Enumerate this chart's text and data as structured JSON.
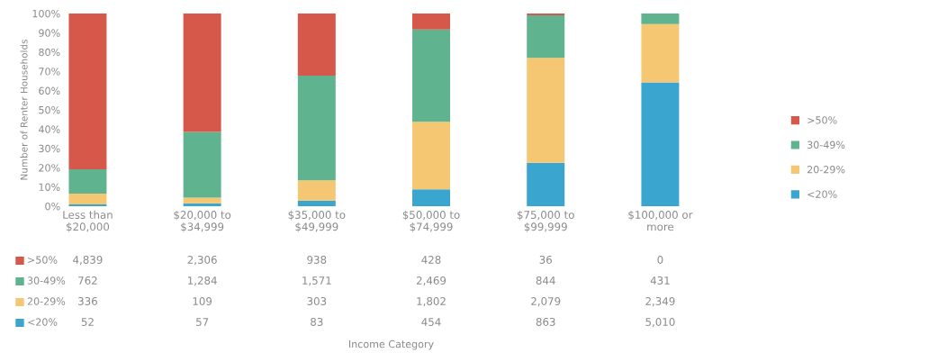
{
  "chart_data": [
    {
      "type": "bar",
      "stacked": true,
      "ylabel": "Number of Renter Households",
      "categories": [
        "Less than\n$20,000",
        "$20,000 to\n$34,999",
        "$35,000 to\n$49,999",
        "$50,000 to\n$74,999",
        "$75,000 to\n$99,999",
        "$100,000 or\nmore"
      ],
      "series": [
        {
          "name": "<20%",
          "color": "#3aa6cf",
          "values": [
            0.9,
            1.5,
            2.9,
            8.8,
            22.6,
            64.3
          ]
        },
        {
          "name": "20-29%",
          "color": "#f6c772",
          "values": [
            5.6,
            2.9,
            10.5,
            35.0,
            54.4,
            30.2
          ]
        },
        {
          "name": "30-49%",
          "color": "#60b38f",
          "values": [
            12.7,
            34.2,
            54.3,
            47.9,
            22.1,
            5.5
          ]
        },
        {
          "name": ">50%",
          "color": "#d5584a",
          "values": [
            80.8,
            61.4,
            32.3,
            8.3,
            0.9,
            0
          ]
        }
      ],
      "ylim": [
        0,
        100
      ],
      "yticks": [
        {
          "value": 0,
          "label": "0%"
        },
        {
          "value": 10,
          "label": "10%"
        },
        {
          "value": 20,
          "label": "20%"
        },
        {
          "value": 30,
          "label": "30%"
        },
        {
          "value": 40,
          "label": "40%"
        },
        {
          "value": 50,
          "label": "50%"
        },
        {
          "value": 60,
          "label": "60%"
        },
        {
          "value": 70,
          "label": "70%"
        },
        {
          "value": 80,
          "label": "80%"
        },
        {
          "value": 90,
          "label": "90%"
        },
        {
          "value": 100,
          "label": "100%"
        }
      ],
      "grid": false,
      "legend": "right"
    },
    {
      "type": "heatmap",
      "xlabel": "Income Category",
      "categories": [
        null,
        null,
        null,
        null,
        null,
        null
      ],
      "y_categories": [
        ">50%",
        "30-49%",
        "20-29%",
        "<20%"
      ],
      "cells": [
        [
          4839,
          2306,
          938,
          428,
          36,
          0
        ],
        [
          762,
          1284,
          1571,
          2469,
          844,
          431
        ],
        [
          336,
          109,
          303,
          1802,
          2079,
          2349
        ],
        [
          52,
          57,
          83,
          454,
          863,
          5010
        ]
      ],
      "cell_labels": [
        [
          "4,839",
          "2,306",
          "938",
          "428",
          "36",
          "0"
        ],
        [
          "762",
          "1,284",
          "1,571",
          "2,469",
          "844",
          "431"
        ],
        [
          "336",
          "109",
          "303",
          "1,802",
          "2,079",
          "2,349"
        ],
        [
          "52",
          "57",
          "83",
          "454",
          "863",
          "5,010"
        ]
      ]
    }
  ]
}
